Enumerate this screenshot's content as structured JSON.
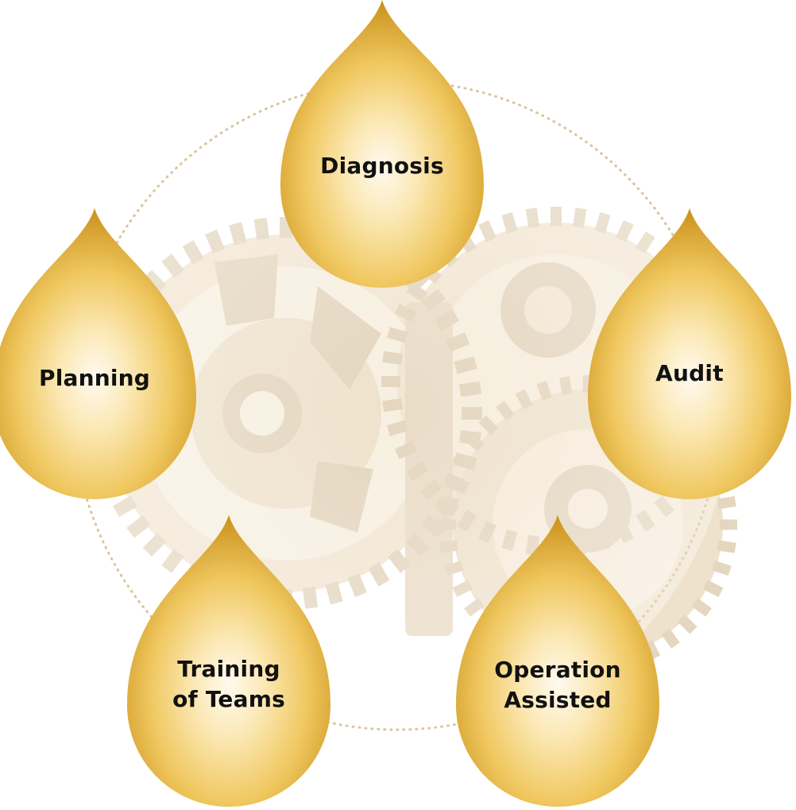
{
  "diagram": {
    "steps": [
      {
        "id": "diagnosis",
        "lines": [
          "Diagnosis"
        ]
      },
      {
        "id": "planning",
        "lines": [
          "Planning"
        ]
      },
      {
        "id": "audit",
        "lines": [
          "Audit"
        ]
      },
      {
        "id": "training",
        "lines": [
          "Training",
          "of Teams"
        ]
      },
      {
        "id": "operation",
        "lines": [
          "Operation",
          "Assisted"
        ]
      }
    ]
  },
  "colors": {
    "drop_highlight": "#fffaf0",
    "drop_mid": "#f0c860",
    "drop_edge": "#c9901a",
    "ring_dots": "#c8a66a",
    "gears": "#e8d3b0",
    "gears_dark": "#cfb58c",
    "label_text": "#111111"
  },
  "background_icon": "gear-cluster-icon"
}
